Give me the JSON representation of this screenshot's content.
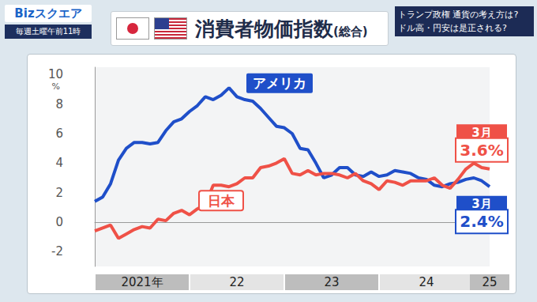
{
  "header": {
    "logo": "Bizスクエア",
    "schedule": "毎週土曜午前11時",
    "headlines": [
      "トランプ政権 通貨の考え方は?",
      "ドル高・円安は是正される?"
    ]
  },
  "chart_data": {
    "type": "line",
    "title": "消費者物価指数",
    "subtitle": "(総合)",
    "ylabel": "%",
    "categories": [
      null,
      null,
      null,
      null,
      null,
      null,
      "2021年",
      null,
      null,
      null,
      null,
      null,
      null,
      null,
      null,
      null,
      null,
      null,
      "22",
      null,
      null,
      null,
      null,
      null,
      null,
      null,
      null,
      null,
      null,
      null,
      "23",
      null,
      null,
      null,
      null,
      null,
      null,
      null,
      null,
      null,
      null,
      null,
      "24",
      null,
      null,
      null,
      null,
      null,
      null,
      null,
      "25"
    ],
    "series": [
      {
        "name": "アメリカ",
        "color": "#1f4fc9",
        "values": [
          1.4,
          1.7,
          2.6,
          4.2,
          5.0,
          5.4,
          5.4,
          5.3,
          5.4,
          6.2,
          6.8,
          7.0,
          7.5,
          7.9,
          8.5,
          8.3,
          8.6,
          9.1,
          8.5,
          8.3,
          8.2,
          7.7,
          7.1,
          6.5,
          6.4,
          6.0,
          5.0,
          4.9,
          4.0,
          3.0,
          3.2,
          3.7,
          3.7,
          3.2,
          3.1,
          3.4,
          3.1,
          3.2,
          3.5,
          3.4,
          3.3,
          3.0,
          2.9,
          2.5,
          2.4,
          2.6,
          2.7,
          2.9,
          3.0,
          2.8,
          2.4
        ]
      },
      {
        "name": "日本",
        "color": "#ef5147",
        "values": [
          -0.6,
          -0.4,
          -0.2,
          -1.1,
          -0.8,
          -0.5,
          -0.3,
          -0.4,
          0.2,
          0.1,
          0.6,
          0.8,
          0.5,
          0.9,
          1.2,
          2.5,
          2.5,
          2.4,
          2.6,
          3.0,
          3.0,
          3.7,
          3.8,
          4.0,
          4.3,
          3.3,
          3.2,
          3.5,
          3.2,
          3.3,
          3.3,
          3.2,
          3.0,
          3.3,
          2.8,
          2.6,
          2.2,
          2.8,
          2.7,
          2.5,
          2.8,
          2.8,
          2.8,
          3.0,
          2.5,
          2.3,
          2.9,
          3.6,
          4.0,
          3.7,
          3.6
        ]
      }
    ],
    "ylim": [
      -3,
      10.5
    ],
    "yticks": [
      -2,
      0,
      2,
      4,
      6,
      8,
      10
    ],
    "grid": false,
    "annotations": [
      {
        "series": "日本",
        "title": "3月",
        "text": "3.6%",
        "value": 3.6
      },
      {
        "series": "アメリカ",
        "title": "3月",
        "text": "2.4%",
        "value": 2.4
      }
    ]
  }
}
